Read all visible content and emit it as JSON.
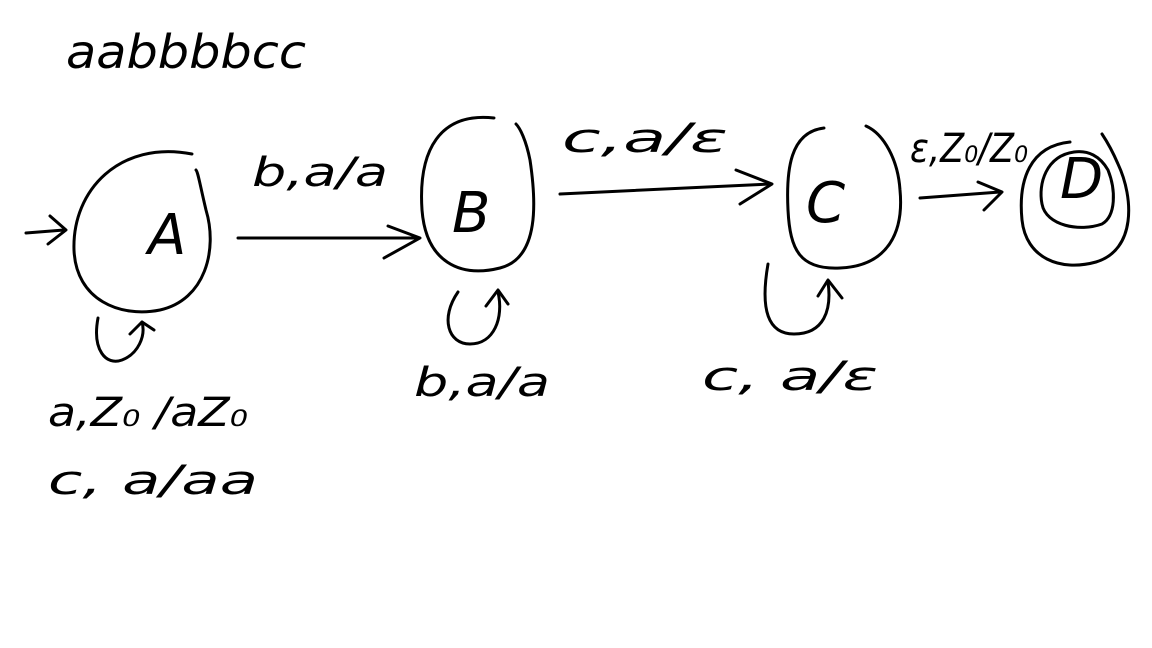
{
  "input_string": "aabbbbcc",
  "states": [
    {
      "id": "A",
      "label": "A",
      "start": true,
      "accepting": false
    },
    {
      "id": "B",
      "label": "B",
      "start": false,
      "accepting": false
    },
    {
      "id": "C",
      "label": "C",
      "start": false,
      "accepting": false
    },
    {
      "id": "D",
      "label": "D",
      "start": false,
      "accepting": true
    }
  ],
  "transitions": [
    {
      "from": "A",
      "to": "A",
      "labels": [
        "a,Z₀ /aZ₀",
        "c, a/aa"
      ]
    },
    {
      "from": "A",
      "to": "B",
      "labels": [
        "b,a/a"
      ]
    },
    {
      "from": "B",
      "to": "B",
      "labels": [
        "b,a/a"
      ]
    },
    {
      "from": "B",
      "to": "C",
      "labels": [
        "c,a/ε"
      ]
    },
    {
      "from": "C",
      "to": "C",
      "labels": [
        "c, a/ε"
      ]
    },
    {
      "from": "C",
      "to": "D",
      "labels": [
        "ε,Z₀/Z₀"
      ]
    }
  ],
  "colors": {
    "ink": "#000000",
    "background": "#ffffff"
  }
}
